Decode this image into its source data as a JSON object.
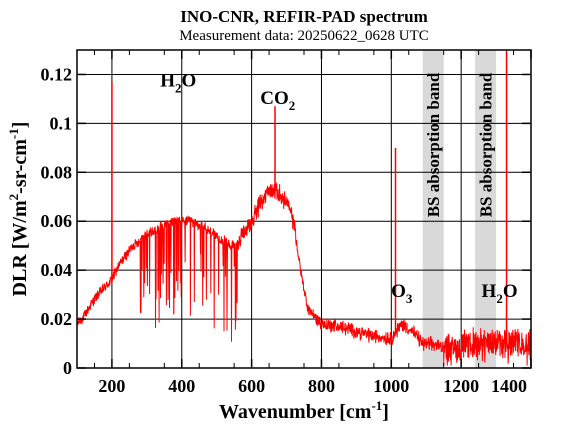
{
  "colors": {
    "background": "#ffffff",
    "frame": "#000000",
    "grid": "#000000",
    "spectrum": "#ff0000",
    "band_fill": "#d9d9d9"
  },
  "chart_data": {
    "type": "line",
    "title": "INO-CNR, REFIR-PAD spectrum",
    "subtitle": "Measurement data: 20250622_0628 UTC",
    "xlabel": "Wavenumber [cm-1]",
    "ylabel": "DLR [W/m2-sr-cm-1]",
    "xlim": [
      100,
      1400
    ],
    "ylim": [
      0,
      0.13
    ],
    "xticks": [
      200,
      400,
      600,
      800,
      1000,
      1200,
      1400
    ],
    "xtick_labels": [
      "200",
      "400",
      "600",
      "800",
      "1000",
      "1200",
      "1400"
    ],
    "yticks": [
      0,
      0.02,
      0.04,
      0.06,
      0.08,
      0.1,
      0.12
    ],
    "ytick_labels": [
      "0",
      "0.02",
      "0.04",
      "0.06",
      "0.08",
      "0.1",
      "0.12"
    ],
    "grid": true,
    "series": [
      {
        "x": [
          100,
          120,
          140,
          160,
          180,
          200,
          220,
          240,
          260,
          280,
          300,
          320,
          340,
          360,
          380,
          400,
          420,
          440,
          460,
          480,
          500,
          520,
          540,
          560,
          580,
          600,
          620,
          640,
          660,
          680,
          700,
          720,
          740,
          760,
          780,
          800,
          850,
          900,
          950,
          1000,
          1030,
          1060,
          1090,
          1150,
          1170,
          1200,
          1230,
          1290,
          1310,
          1340,
          1370,
          1400
        ],
        "values": [
          0.018,
          0.021,
          0.026,
          0.03,
          0.033,
          0.036,
          0.042,
          0.046,
          0.05,
          0.052,
          0.055,
          0.056,
          0.058,
          0.059,
          0.06,
          0.06,
          0.06,
          0.059,
          0.058,
          0.056,
          0.054,
          0.052,
          0.05,
          0.051,
          0.055,
          0.06,
          0.066,
          0.071,
          0.073,
          0.071,
          0.068,
          0.06,
          0.04,
          0.025,
          0.021,
          0.018,
          0.017,
          0.015,
          0.013,
          0.012,
          0.018,
          0.015,
          0.01,
          0.009,
          0.008,
          0.009,
          0.01,
          0.01,
          0.012,
          0.011,
          0.01,
          0.01
        ]
      }
    ],
    "spikes": [
      {
        "x": 200,
        "y": 0.117
      },
      {
        "x": 667,
        "y": 0.107
      },
      {
        "x": 1012,
        "y": 0.09
      },
      {
        "x": 1330,
        "y": 0.13
      }
    ],
    "bands": [
      {
        "x0": 1090,
        "x1": 1150,
        "label": "BS absorption band"
      },
      {
        "x0": 1240,
        "x1": 1300,
        "label": "BS absorption band"
      }
    ],
    "annotations": [
      {
        "base": "H",
        "sub": "2",
        "rest": "O",
        "x": 390,
        "y": 0.115
      },
      {
        "base": "CO",
        "sub": "2",
        "rest": "",
        "x": 675,
        "y": 0.108
      },
      {
        "base": "O",
        "sub": "3",
        "rest": "",
        "x": 1030,
        "y": 0.029
      },
      {
        "base": "H",
        "sub": "2",
        "rest": "O",
        "x": 1310,
        "y": 0.029
      }
    ]
  }
}
